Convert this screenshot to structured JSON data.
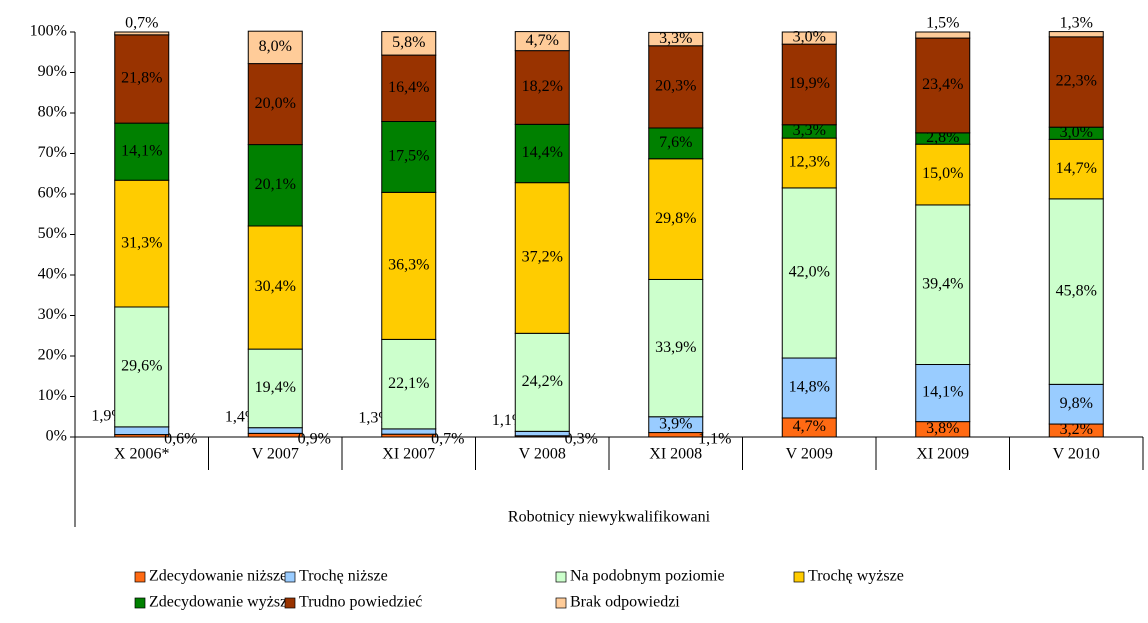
{
  "chart_data": {
    "type": "stacked_bar",
    "categories": [
      "X 2006*",
      "V 2007",
      "XI 2007",
      "V 2008",
      "XI 2008",
      "V 2009",
      "XI 2009",
      "V 2010"
    ],
    "x_label": "Robotnicy niewykwalifikowani",
    "ylim": [
      0,
      100
    ],
    "yticks": [
      {
        "value": 0,
        "label": "0%"
      },
      {
        "value": 10,
        "label": "10%"
      },
      {
        "value": 20,
        "label": "20%"
      },
      {
        "value": 30,
        "label": "30%"
      },
      {
        "value": 40,
        "label": "40%"
      },
      {
        "value": 50,
        "label": "50%"
      },
      {
        "value": 60,
        "label": "60%"
      },
      {
        "value": 70,
        "label": "70%"
      },
      {
        "value": 80,
        "label": "80%"
      },
      {
        "value": 90,
        "label": "90%"
      },
      {
        "value": 100,
        "label": "100%"
      }
    ],
    "series": [
      {
        "name": "Zdecydowanie niższe",
        "color": "#ff6a13",
        "values": [
          0.6,
          0.9,
          0.7,
          0.3,
          1.1,
          4.7,
          3.8,
          3.2
        ],
        "value_labels": [
          "0,6%",
          "0,9%",
          "0,7%",
          "0,3%",
          "1,1%",
          "4,7%",
          "3,8%",
          "3,2%"
        ]
      },
      {
        "name": "Trochę niższe",
        "color": "#99ccff",
        "values": [
          1.9,
          1.4,
          1.3,
          1.1,
          3.9,
          14.8,
          14.1,
          9.8
        ],
        "value_labels": [
          "1,9%",
          "1,4%",
          "1,3%",
          "1,1%",
          "3,9%",
          "14,8%",
          "14,1%",
          "9,8%"
        ]
      },
      {
        "name": "Na podobnym poziomie",
        "color": "#ccffcc",
        "values": [
          29.6,
          19.4,
          22.1,
          24.2,
          33.9,
          42.0,
          39.4,
          45.8
        ],
        "value_labels": [
          "29,6%",
          "19,4%",
          "22,1%",
          "24,2%",
          "33,9%",
          "42,0%",
          "39,4%",
          "45,8%"
        ]
      },
      {
        "name": "Trochę wyższe",
        "color": "#ffcc00",
        "values": [
          31.3,
          30.4,
          36.3,
          37.2,
          29.8,
          12.3,
          15.0,
          14.7
        ],
        "value_labels": [
          "31,3%",
          "30,4%",
          "36,3%",
          "37,2%",
          "29,8%",
          "12,3%",
          "15,0%",
          "14,7%"
        ]
      },
      {
        "name": "Zdecydowanie wyższe",
        "color": "#008000",
        "values": [
          14.1,
          20.1,
          17.5,
          14.4,
          7.6,
          3.3,
          2.8,
          3.0
        ],
        "value_labels": [
          "14,1%",
          "20,1%",
          "17,5%",
          "14,4%",
          "7,6%",
          "3,3%",
          "2,8%",
          "3,0%"
        ]
      },
      {
        "name": "Trudno powiedzieć",
        "color": "#993300",
        "values": [
          21.8,
          20.0,
          16.4,
          18.2,
          20.3,
          19.9,
          23.4,
          22.3
        ],
        "value_labels": [
          "21,8%",
          "20,0%",
          "16,4%",
          "18,2%",
          "20,3%",
          "19,9%",
          "23,4%",
          "22,3%"
        ]
      },
      {
        "name": "Brak odpowiedzi",
        "color": "#ffcc99",
        "values": [
          0.7,
          8.0,
          5.8,
          4.7,
          3.3,
          3.0,
          1.5,
          1.3
        ],
        "value_labels": [
          "0,7%",
          "8,0%",
          "5,8%",
          "4,7%",
          "3,3%",
          "3,0%",
          "1,5%",
          "1,3%"
        ]
      }
    ],
    "legend": "bottom"
  }
}
